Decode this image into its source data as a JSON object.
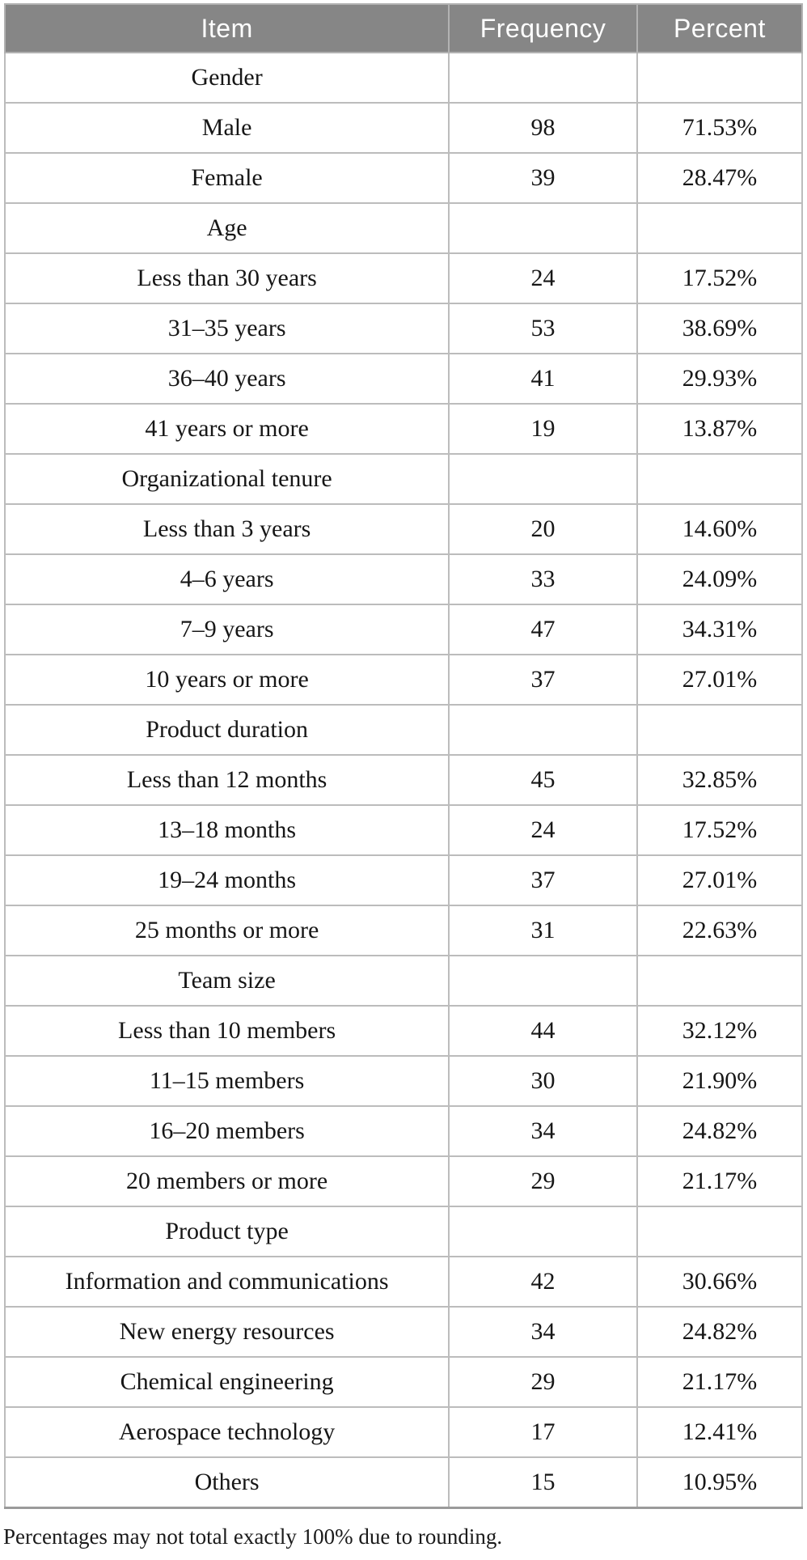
{
  "colors": {
    "header_bg": "#868686",
    "header_text": "#ffffff",
    "grid_border": "#b2b2b2",
    "body_text": "#161616"
  },
  "table": {
    "columns": [
      {
        "key": "label",
        "label": "Item"
      },
      {
        "key": "frequency",
        "label": "Frequency"
      },
      {
        "key": "percent",
        "label": "Percent"
      }
    ],
    "rows": [
      {
        "label": "Gender",
        "frequency": "",
        "percent": "",
        "section": true
      },
      {
        "label": "Male",
        "frequency": "98",
        "percent": "71.53%"
      },
      {
        "label": "Female",
        "frequency": "39",
        "percent": "28.47%"
      },
      {
        "label": "Age",
        "frequency": "",
        "percent": "",
        "section": true
      },
      {
        "label": "Less than 30 years",
        "frequency": "24",
        "percent": "17.52%"
      },
      {
        "label": "31–35 years",
        "frequency": "53",
        "percent": "38.69%"
      },
      {
        "label": "36–40 years",
        "frequency": "41",
        "percent": "29.93%"
      },
      {
        "label": "41 years or more",
        "frequency": "19",
        "percent": "13.87%"
      },
      {
        "label": "Organizational tenure",
        "frequency": "",
        "percent": "",
        "section": true
      },
      {
        "label": "Less than 3 years",
        "frequency": "20",
        "percent": "14.60%"
      },
      {
        "label": "4–6 years",
        "frequency": "33",
        "percent": "24.09%"
      },
      {
        "label": "7–9 years",
        "frequency": "47",
        "percent": "34.31%"
      },
      {
        "label": "10 years or more",
        "frequency": "37",
        "percent": "27.01%"
      },
      {
        "label": "Product duration",
        "frequency": "",
        "percent": "",
        "section": true
      },
      {
        "label": "Less than 12 months",
        "frequency": "45",
        "percent": "32.85%"
      },
      {
        "label": "13–18 months",
        "frequency": "24",
        "percent": "17.52%"
      },
      {
        "label": "19–24 months",
        "frequency": "37",
        "percent": "27.01%"
      },
      {
        "label": "25 months or more",
        "frequency": "31",
        "percent": "22.63%"
      },
      {
        "label": "Team size",
        "frequency": "",
        "percent": "",
        "section": true
      },
      {
        "label": "Less than 10 members",
        "frequency": "44",
        "percent": "32.12%"
      },
      {
        "label": "11–15 members",
        "frequency": "30",
        "percent": "21.90%"
      },
      {
        "label": "16–20 members",
        "frequency": "34",
        "percent": "24.82%"
      },
      {
        "label": "20 members or more",
        "frequency": "29",
        "percent": "21.17%"
      },
      {
        "label": "Product type",
        "frequency": "",
        "percent": "",
        "section": true
      },
      {
        "label": "Information and communications",
        "frequency": "42",
        "percent": "30.66%"
      },
      {
        "label": "New energy resources",
        "frequency": "34",
        "percent": "24.82%"
      },
      {
        "label": "Chemical engineering",
        "frequency": "29",
        "percent": "21.17%"
      },
      {
        "label": "Aerospace technology",
        "frequency": "17",
        "percent": "12.41%"
      },
      {
        "label": "Others",
        "frequency": "15",
        "percent": "10.95%"
      }
    ],
    "footnote": "Percentages may not total exactly 100% due to rounding."
  },
  "chart_data": {
    "type": "table",
    "title": "",
    "columns": [
      "Item",
      "Frequency",
      "Percent"
    ],
    "groups": [
      {
        "name": "Gender",
        "items": [
          [
            "Male",
            98,
            "71.53%"
          ],
          [
            "Female",
            39,
            "28.47%"
          ]
        ]
      },
      {
        "name": "Age",
        "items": [
          [
            "Less than 30 years",
            24,
            "17.52%"
          ],
          [
            "31–35 years",
            53,
            "38.69%"
          ],
          [
            "36–40 years",
            41,
            "29.93%"
          ],
          [
            "41 years or more",
            19,
            "13.87%"
          ]
        ]
      },
      {
        "name": "Organizational tenure",
        "items": [
          [
            "Less than 3 years",
            20,
            "14.60%"
          ],
          [
            "4–6 years",
            33,
            "24.09%"
          ],
          [
            "7–9 years",
            47,
            "34.31%"
          ],
          [
            "10 years or more",
            37,
            "27.01%"
          ]
        ]
      },
      {
        "name": "Product duration",
        "items": [
          [
            "Less than 12 months",
            45,
            "32.85%"
          ],
          [
            "13–18 months",
            24,
            "17.52%"
          ],
          [
            "19–24 months",
            37,
            "27.01%"
          ],
          [
            "25 months or more",
            31,
            "22.63%"
          ]
        ]
      },
      {
        "name": "Team size",
        "items": [
          [
            "Less than 10 members",
            44,
            "32.12%"
          ],
          [
            "11–15 members",
            30,
            "21.90%"
          ],
          [
            "16–20 members",
            34,
            "24.82%"
          ],
          [
            "20 members or more",
            29,
            "21.17%"
          ]
        ]
      },
      {
        "name": "Product type",
        "items": [
          [
            "Information and communications",
            42,
            "30.66%"
          ],
          [
            "New energy resources",
            34,
            "24.82%"
          ],
          [
            "Chemical engineering",
            29,
            "21.17%"
          ],
          [
            "Aerospace technology",
            17,
            "12.41%"
          ],
          [
            "Others",
            15,
            "10.95%"
          ]
        ]
      }
    ]
  }
}
